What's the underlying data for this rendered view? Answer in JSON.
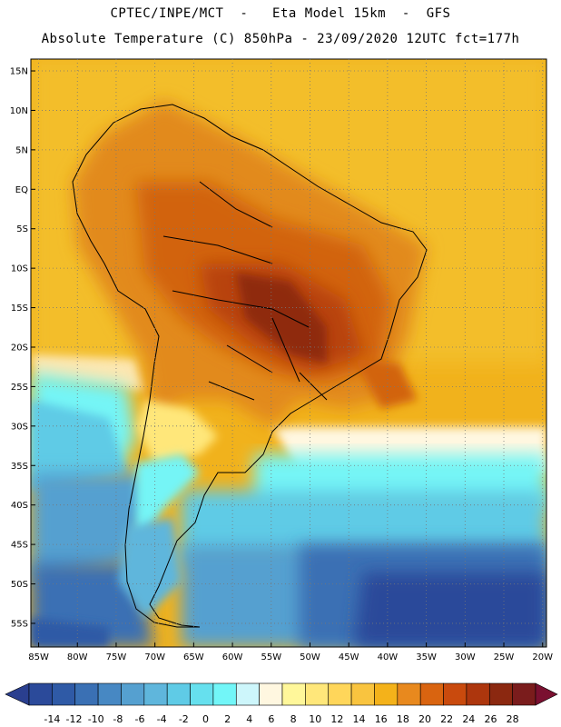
{
  "header": {
    "title_line1": "CPTEC/INPE/MCT  -   Eta Model 15km  -  GFS",
    "title_line2": "Absolute Temperature (C) 850hPa - 23/09/2020 12UTC fct=177h"
  },
  "map": {
    "extent": {
      "lon_min": -86,
      "lon_max": -19.5,
      "lat_min": -58,
      "lat_max": 16.5
    },
    "lat_labels": [
      "15N",
      "10N",
      "5N",
      "EQ",
      "5S",
      "10S",
      "15S",
      "20S",
      "25S",
      "30S",
      "35S",
      "40S",
      "45S",
      "50S",
      "55S"
    ],
    "lat_values": [
      15,
      10,
      5,
      0,
      -5,
      -10,
      -15,
      -20,
      -25,
      -30,
      -35,
      -40,
      -45,
      -50,
      -55
    ],
    "lon_labels": [
      "85W",
      "80W",
      "75W",
      "70W",
      "65W",
      "60W",
      "55W",
      "50W",
      "45W",
      "40W",
      "35W",
      "30W",
      "25W",
      "20W"
    ],
    "lon_values": [
      -85,
      -80,
      -75,
      -70,
      -65,
      -60,
      -55,
      -50,
      -45,
      -40,
      -35,
      -30,
      -25,
      -20
    ]
  },
  "colorbar": {
    "labels": [
      "-14",
      "-12",
      "-10",
      "-8",
      "-6",
      "-4",
      "-2",
      "0",
      "2",
      "4",
      "6",
      "8",
      "10",
      "12",
      "14",
      "16",
      "18",
      "20",
      "22",
      "24",
      "26",
      "28"
    ],
    "colors": [
      "#2b4a9a",
      "#2f5aa6",
      "#3a70b4",
      "#4788c3",
      "#55a0d0",
      "#5fb6dc",
      "#5fcbe6",
      "#66e0ee",
      "#72f6f8",
      "#cdf6fb",
      "#fff7e0",
      "#fff79a",
      "#ffe77a",
      "#ffd65a",
      "#f9c43f",
      "#f4b21a",
      "#e8891e",
      "#d96410",
      "#c94a0d",
      "#ad360d",
      "#8b2810",
      "#7a1c1c"
    ],
    "low_cap": "#2a3f8f",
    "high_cap": "#7a1030"
  }
}
